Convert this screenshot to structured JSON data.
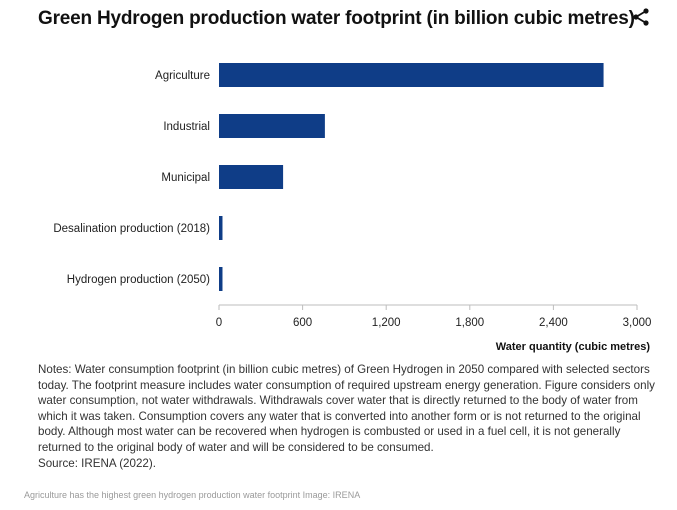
{
  "header": {
    "title": "Green Hydrogen production water footprint (in billion cubic metres)",
    "share_icon": "share-icon"
  },
  "chart_data": {
    "type": "bar",
    "orientation": "horizontal",
    "categories": [
      "Agriculture",
      "Industrial",
      "Municipal",
      "Desalination production (2018)",
      "Hydrogen production (2050)"
    ],
    "values": [
      2760,
      760,
      460,
      25,
      25
    ],
    "xlabel": "Water quantity (cubic metres)",
    "ylabel": "",
    "xlim": [
      0,
      3000
    ],
    "xticks": [
      0,
      600,
      1200,
      1800,
      2400,
      3000
    ],
    "xtick_labels": [
      "0",
      "600",
      "1,200",
      "1,800",
      "2,400",
      "3,000"
    ],
    "bar_color": "#0f3d87",
    "grid": false
  },
  "notes": {
    "text": "Notes: Water consumption footprint (in billion cubic metres) of Green Hydrogen in 2050 compared with selected sectors today. The footprint measure includes water consumption of required upstream energy generation. Figure considers only water consumption, not water withdrawals. Withdrawals cover water that is directly returned to the body of water from which it was taken. Consumption covers any water that is converted into another form or is not returned to the original body. Although most water can be recovered when hydrogen is combusted or used in a fuel cell, it is not generally returned to the original body of water and will be considered to be consumed.",
    "source": "Source: IRENA (2022)."
  },
  "caption": "Agriculture has the highest green hydrogen production water footprint Image: IRENA"
}
